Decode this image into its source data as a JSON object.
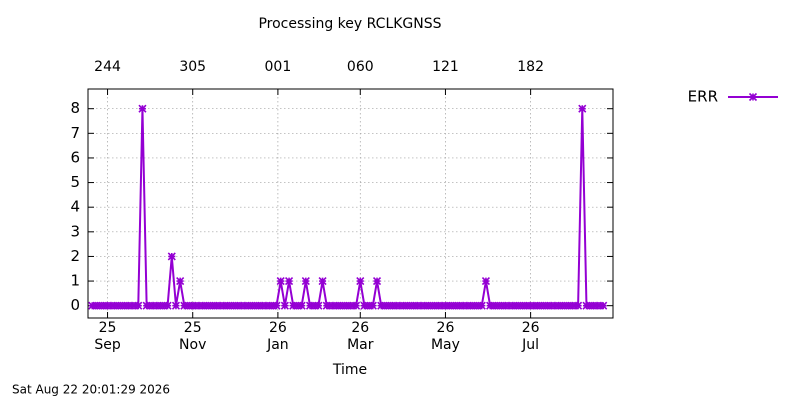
{
  "chart_data": {
    "type": "line",
    "title": "Processing key RCLKGNSS",
    "x_label": "Time",
    "timestamp": "Sat Aug 22 20:01:29 2026",
    "x": [
      -11,
      -8,
      -5,
      -2,
      1,
      4,
      7,
      10,
      13,
      16,
      19,
      22,
      25,
      28,
      31,
      34,
      37,
      40,
      43,
      46,
      49,
      52,
      55,
      58,
      61,
      64,
      67,
      70,
      73,
      76,
      79,
      82,
      85,
      88,
      91,
      94,
      97,
      100,
      103,
      106,
      109,
      112,
      115,
      118,
      121,
      124,
      127,
      130,
      133,
      136,
      139,
      142,
      145,
      148,
      151,
      154,
      157,
      160,
      163,
      166,
      169,
      172,
      175,
      178,
      181,
      184,
      187,
      190,
      193,
      196,
      199,
      202,
      205,
      208,
      211,
      214,
      217,
      220,
      223,
      226,
      229,
      232,
      235,
      238,
      241,
      244,
      247,
      250,
      253,
      256,
      259,
      262,
      265,
      268,
      271,
      274,
      277,
      280,
      283,
      286,
      289,
      292,
      295,
      298,
      301,
      304,
      307,
      310,
      313,
      316,
      319,
      322,
      325,
      328,
      331,
      334,
      337,
      340,
      343,
      346,
      349,
      352,
      355
    ],
    "series": [
      {
        "name": "ERR",
        "color": "#9400d3",
        "values": [
          0,
          0,
          0,
          0,
          0,
          0,
          0,
          0,
          0,
          0,
          0,
          0,
          8,
          0,
          0,
          0,
          0,
          0,
          0,
          2,
          0,
          1,
          0,
          0,
          0,
          0,
          0,
          0,
          0,
          0,
          0,
          0,
          0,
          0,
          0,
          0,
          0,
          0,
          0,
          0,
          0,
          0,
          0,
          0,
          0,
          1,
          0,
          1,
          0,
          0,
          0,
          1,
          0,
          0,
          0,
          1,
          0,
          0,
          0,
          0,
          0,
          0,
          0,
          0,
          1,
          0,
          0,
          0,
          1,
          0,
          0,
          0,
          0,
          0,
          0,
          0,
          0,
          0,
          0,
          0,
          0,
          0,
          0,
          0,
          0,
          0,
          0,
          0,
          0,
          0,
          0,
          0,
          0,
          0,
          1,
          0,
          0,
          0,
          0,
          0,
          0,
          0,
          0,
          0,
          0,
          0,
          0,
          0,
          0,
          0,
          0,
          0,
          0,
          0,
          0,
          0,
          0,
          8,
          0,
          0,
          0,
          0,
          0
        ]
      }
    ],
    "xlim": [
      -14,
      362
    ],
    "ylim": [
      -0.5,
      8.8
    ],
    "xticks": [
      {
        "value": 0,
        "label": "25\nSep"
      },
      {
        "value": 61,
        "label": "25\nNov"
      },
      {
        "value": 122,
        "label": "26\nJan"
      },
      {
        "value": 181,
        "label": "26\nMar"
      },
      {
        "value": 242,
        "label": "26\nMay"
      },
      {
        "value": 303,
        "label": "26\nJul"
      }
    ],
    "x2ticks": [
      {
        "value": 0,
        "label": "244"
      },
      {
        "value": 61,
        "label": "305"
      },
      {
        "value": 122,
        "label": "001"
      },
      {
        "value": 181,
        "label": "060"
      },
      {
        "value": 242,
        "label": "121"
      },
      {
        "value": 303,
        "label": "182"
      }
    ],
    "yticks": [
      0,
      1,
      2,
      3,
      4,
      5,
      6,
      7,
      8
    ],
    "grid": true,
    "legend": "outside-right"
  }
}
